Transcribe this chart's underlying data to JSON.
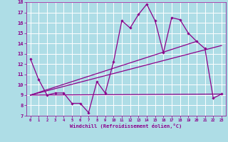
{
  "xlabel": "Windchill (Refroidissement éolien,°C)",
  "background_color": "#aedde6",
  "grid_color": "#ffffff",
  "line_color": "#8b008b",
  "x_data": [
    0,
    1,
    2,
    3,
    4,
    5,
    6,
    7,
    8,
    9,
    10,
    11,
    12,
    13,
    14,
    15,
    16,
    17,
    18,
    19,
    20,
    21,
    22,
    23
  ],
  "y_data": [
    12.5,
    10.5,
    9.0,
    9.2,
    9.2,
    8.2,
    8.2,
    7.3,
    10.3,
    9.2,
    12.2,
    16.2,
    15.5,
    16.8,
    17.8,
    16.2,
    13.1,
    16.5,
    16.3,
    15.0,
    14.2,
    13.5,
    8.7,
    9.1
  ],
  "trend1_x": [
    0,
    23
  ],
  "trend1_y": [
    9.0,
    9.1
  ],
  "trend2_x": [
    0,
    23
  ],
  "trend2_y": [
    9.0,
    13.8
  ],
  "trend3_x": [
    0,
    20
  ],
  "trend3_y": [
    9.0,
    14.2
  ],
  "xlim": [
    -0.5,
    23.5
  ],
  "ylim": [
    7,
    18
  ],
  "xticks": [
    0,
    1,
    2,
    3,
    4,
    5,
    6,
    7,
    8,
    9,
    10,
    11,
    12,
    13,
    14,
    15,
    16,
    17,
    18,
    19,
    20,
    21,
    22,
    23
  ],
  "yticks": [
    7,
    8,
    9,
    10,
    11,
    12,
    13,
    14,
    15,
    16,
    17,
    18
  ]
}
